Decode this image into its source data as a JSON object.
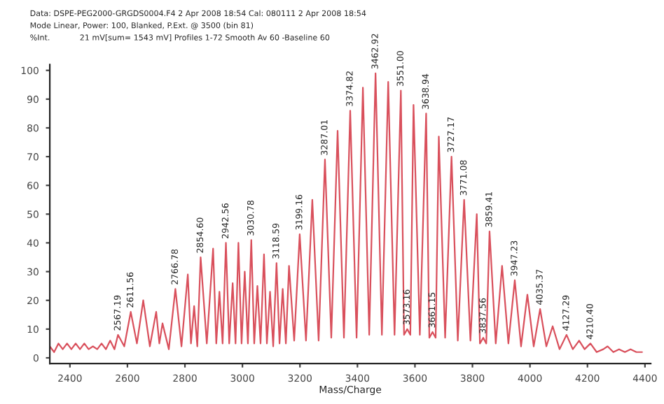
{
  "chart_data": {
    "type": "line",
    "title": "Data: DSPE-PEG2000-GRGDS0004.F4 2 Apr 2008 18:54 Cal: 080111 2 Apr 2008 18:54",
    "subtitle": "Mode Linear, Power: 100, Blanked, P.Ext. @ 3500 (bin 81)",
    "xlabel": "Mass/Charge",
    "ylabel": "%Int.",
    "annotations": [
      "21 mV[sum= 1543 mV] Profiles 1-72 Smooth Av 60 -Baseline 60",
      {
        "text": "2567.19",
        "x": 2567.19,
        "y": 8
      },
      {
        "text": "2611.56",
        "x": 2611.56,
        "y": 16
      },
      {
        "text": "2766.78",
        "x": 2766.78,
        "y": 24
      },
      {
        "text": "2854.60",
        "x": 2854.6,
        "y": 35
      },
      {
        "text": "2942.56",
        "x": 2942.56,
        "y": 40
      },
      {
        "text": "3030.78",
        "x": 3030.78,
        "y": 41
      },
      {
        "text": "3118.59",
        "x": 3118.59,
        "y": 33
      },
      {
        "text": "3199.16",
        "x": 3199.16,
        "y": 43
      },
      {
        "text": "3287.01",
        "x": 3287.01,
        "y": 69
      },
      {
        "text": "3374.82",
        "x": 3374.82,
        "y": 86
      },
      {
        "text": "3462.92",
        "x": 3462.92,
        "y": 99
      },
      {
        "text": "3551.00",
        "x": 3551.0,
        "y": 93
      },
      {
        "text": "3573.16",
        "x": 3573.16,
        "y": 10
      },
      {
        "text": "3638.94",
        "x": 3638.94,
        "y": 85
      },
      {
        "text": "3661.15",
        "x": 3661.15,
        "y": 9
      },
      {
        "text": "3727.17",
        "x": 3727.17,
        "y": 70
      },
      {
        "text": "3771.08",
        "x": 3771.08,
        "y": 55
      },
      {
        "text": "3837.56",
        "x": 3837.56,
        "y": 7
      },
      {
        "text": "3859.41",
        "x": 3859.41,
        "y": 44
      },
      {
        "text": "3947.23",
        "x": 3947.23,
        "y": 27
      },
      {
        "text": "4035.37",
        "x": 4035.37,
        "y": 17
      },
      {
        "text": "4127.29",
        "x": 4127.29,
        "y": 8
      },
      {
        "text": "4210.40",
        "x": 4210.4,
        "y": 5
      }
    ],
    "series": [
      {
        "color": "#d9505c",
        "x": [
          2330,
          2345,
          2360,
          2375,
          2390,
          2405,
          2420,
          2435,
          2450,
          2465,
          2480,
          2495,
          2510,
          2525,
          2540,
          2555,
          2567.19,
          2589,
          2611.56,
          2633,
          2655,
          2678,
          2700,
          2711,
          2722,
          2744,
          2766.78,
          2788,
          2810,
          2821,
          2832,
          2843,
          2854.6,
          2876,
          2898,
          2909,
          2920,
          2931,
          2942.56,
          2954,
          2966,
          2976,
          2986,
          2997,
          3008,
          3019,
          3030.78,
          3041,
          3052,
          3063,
          3075,
          3085,
          3096,
          3107,
          3118.59,
          3129,
          3140,
          3151,
          3162,
          3180,
          3199.16,
          3221,
          3243,
          3265,
          3287.01,
          3309,
          3331,
          3353,
          3374.82,
          3397,
          3419,
          3441,
          3462.92,
          3485,
          3507,
          3529,
          3551,
          3562,
          3573.16,
          3584,
          3595,
          3617,
          3638.94,
          3650,
          3661.15,
          3672,
          3683,
          3705,
          3727.17,
          3749,
          3771.08,
          3793,
          3815,
          3826,
          3837.56,
          3848,
          3859.41,
          3881,
          3903,
          3925,
          3947.23,
          3969,
          3991,
          4013,
          4035.37,
          4057,
          4079,
          4103,
          4127.29,
          4149,
          4171,
          4190,
          4210.4,
          4232,
          4255,
          4270,
          4290,
          4310,
          4330,
          4350,
          4370,
          4390
        ],
        "values": [
          4,
          2,
          5,
          3,
          5,
          3,
          5,
          3,
          5,
          3,
          4,
          3,
          5,
          3,
          6,
          3,
          8,
          4,
          16,
          5,
          20,
          4,
          16,
          5,
          12,
          3,
          24,
          4,
          29,
          5,
          18,
          4,
          35,
          5,
          38,
          5,
          23,
          5,
          40,
          5,
          26,
          5,
          40,
          5,
          30,
          5,
          41,
          5,
          25,
          5,
          36,
          5,
          23,
          4,
          33,
          5,
          24,
          5,
          32,
          6,
          43,
          6,
          55,
          6,
          69,
          7,
          79,
          7,
          86,
          7,
          94,
          8,
          99,
          8,
          96,
          8,
          93,
          8,
          10,
          8,
          88,
          8,
          85,
          7,
          9,
          7,
          77,
          7,
          70,
          6,
          55,
          6,
          50,
          5,
          7,
          5,
          44,
          5,
          32,
          5,
          27,
          4,
          22,
          4,
          17,
          4,
          11,
          3,
          8,
          3,
          6,
          3,
          5,
          2,
          3,
          4,
          2,
          3,
          2,
          3,
          2,
          2
        ]
      }
    ],
    "xlim": [
      2330,
      4420
    ],
    "ylim": [
      -2,
      102
    ],
    "xticks": [
      2400,
      2600,
      2800,
      3000,
      3200,
      3400,
      3600,
      3800,
      4000,
      4200,
      4400
    ],
    "yticks": [
      0,
      10,
      20,
      30,
      40,
      50,
      60,
      70,
      80,
      90,
      100
    ],
    "grid": false,
    "legend": false,
    "marker": "none",
    "line_style": "solid"
  }
}
